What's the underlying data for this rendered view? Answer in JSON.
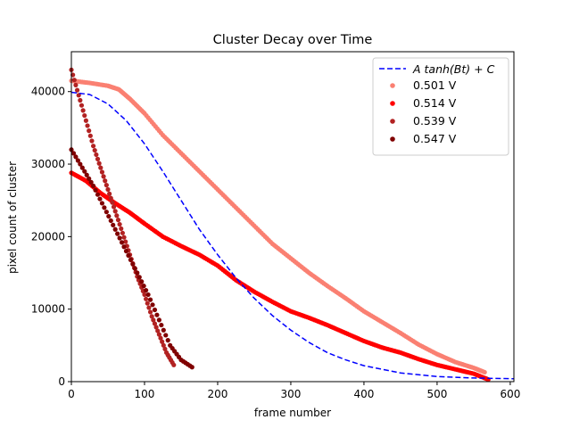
{
  "chart_data": {
    "type": "scatter",
    "title": "Cluster Decay over Time",
    "xlabel": "frame number",
    "ylabel": "pixel count of cluster",
    "xlim": [
      0,
      605
    ],
    "ylim": [
      0,
      45500
    ],
    "xticks": [
      0,
      100,
      200,
      300,
      400,
      500,
      600
    ],
    "yticks": [
      0,
      10000,
      20000,
      30000,
      40000
    ],
    "grid": false,
    "legend_position": "top-right",
    "fit_line": {
      "name": "A tanh(Bt) + C",
      "style": "dashed",
      "color": "#0000ff",
      "points": [
        [
          0,
          39900
        ],
        [
          25,
          39600
        ],
        [
          50,
          38300
        ],
        [
          75,
          36000
        ],
        [
          100,
          32800
        ],
        [
          125,
          29000
        ],
        [
          150,
          25000
        ],
        [
          175,
          21000
        ],
        [
          200,
          17500
        ],
        [
          225,
          14300
        ],
        [
          250,
          11500
        ],
        [
          275,
          9100
        ],
        [
          300,
          7100
        ],
        [
          325,
          5400
        ],
        [
          350,
          4000
        ],
        [
          375,
          3000
        ],
        [
          400,
          2200
        ],
        [
          450,
          1200
        ],
        [
          500,
          700
        ],
        [
          550,
          500
        ],
        [
          605,
          400
        ]
      ]
    },
    "series": [
      {
        "name": "0.501 V",
        "color": "#fa8072",
        "points": [
          [
            0,
            41500
          ],
          [
            25,
            41200
          ],
          [
            50,
            40800
          ],
          [
            65,
            40300
          ],
          [
            80,
            39000
          ],
          [
            100,
            37000
          ],
          [
            125,
            34000
          ],
          [
            150,
            31500
          ],
          [
            175,
            29000
          ],
          [
            200,
            26500
          ],
          [
            225,
            24000
          ],
          [
            250,
            21500
          ],
          [
            275,
            19000
          ],
          [
            300,
            17000
          ],
          [
            325,
            15000
          ],
          [
            350,
            13200
          ],
          [
            375,
            11500
          ],
          [
            400,
            9700
          ],
          [
            425,
            8200
          ],
          [
            450,
            6700
          ],
          [
            475,
            5100
          ],
          [
            500,
            3800
          ],
          [
            525,
            2700
          ],
          [
            550,
            1900
          ],
          [
            565,
            1300
          ]
        ]
      },
      {
        "name": "0.514 V",
        "color": "#ff0000",
        "points": [
          [
            0,
            28800
          ],
          [
            20,
            27700
          ],
          [
            40,
            26000
          ],
          [
            60,
            24600
          ],
          [
            80,
            23300
          ],
          [
            100,
            21800
          ],
          [
            125,
            20000
          ],
          [
            150,
            18700
          ],
          [
            175,
            17500
          ],
          [
            200,
            16000
          ],
          [
            225,
            14000
          ],
          [
            250,
            12400
          ],
          [
            275,
            11000
          ],
          [
            300,
            9700
          ],
          [
            325,
            8800
          ],
          [
            350,
            7800
          ],
          [
            375,
            6700
          ],
          [
            400,
            5600
          ],
          [
            425,
            4700
          ],
          [
            450,
            4000
          ],
          [
            475,
            3100
          ],
          [
            500,
            2300
          ],
          [
            525,
            1700
          ],
          [
            550,
            1100
          ],
          [
            570,
            300
          ]
        ]
      },
      {
        "name": "0.539 V",
        "color": "#b22222",
        "points": [
          [
            0,
            43000
          ],
          [
            10,
            39500
          ],
          [
            20,
            36000
          ],
          [
            30,
            32500
          ],
          [
            40,
            29500
          ],
          [
            50,
            26500
          ],
          [
            60,
            23500
          ],
          [
            70,
            20500
          ],
          [
            80,
            17500
          ],
          [
            90,
            14500
          ],
          [
            100,
            12000
          ],
          [
            110,
            9000
          ],
          [
            120,
            6500
          ],
          [
            130,
            4000
          ],
          [
            140,
            2300
          ]
        ]
      },
      {
        "name": "0.547 V",
        "color": "#800000",
        "points": [
          [
            0,
            32000
          ],
          [
            15,
            29500
          ],
          [
            30,
            27000
          ],
          [
            45,
            24000
          ],
          [
            60,
            21000
          ],
          [
            75,
            18000
          ],
          [
            90,
            15000
          ],
          [
            105,
            12000
          ],
          [
            120,
            8500
          ],
          [
            135,
            5000
          ],
          [
            150,
            3000
          ],
          [
            165,
            2000
          ]
        ]
      }
    ]
  }
}
